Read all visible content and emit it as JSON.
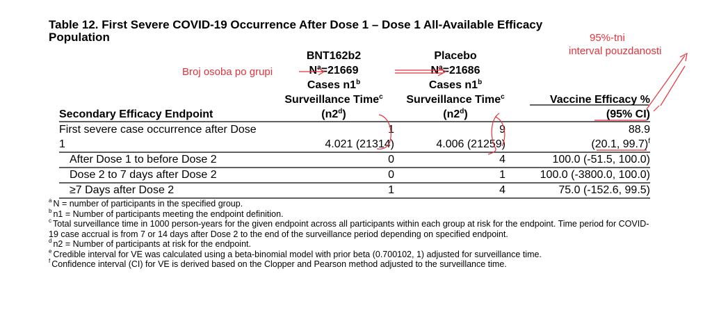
{
  "title": "Table 12. First Severe COVID-19 Occurrence After Dose 1 – Dose 1 All-Available Efficacy Population",
  "header": {
    "endpoint": "Secondary Efficacy Endpoint",
    "groups": [
      {
        "lines": [
          {
            "text": "BNT162b2"
          },
          {
            "text": "N",
            "sup": "a",
            "after": "=21669"
          },
          {
            "text": "Cases n1",
            "sup": "b"
          },
          {
            "text": "Surveillance Time",
            "sup": "c"
          },
          {
            "text": "(n2",
            "sup": "d",
            "after": ")"
          }
        ]
      },
      {
        "lines": [
          {
            "text": "Placebo"
          },
          {
            "text": "N",
            "sup": "a",
            "after": "=21686"
          },
          {
            "text": "Cases n1",
            "sup": "b"
          },
          {
            "text": "Surveillance Time",
            "sup": "c"
          },
          {
            "text": "(n2",
            "sup": "d",
            "after": ")"
          }
        ]
      }
    ],
    "efficacy": [
      {
        "text": "Vaccine Efficacy %"
      },
      {
        "text": "(95% CI)"
      }
    ]
  },
  "table": {
    "rows": [
      {
        "endpoint": "First severe case occurrence after Dose 1",
        "bnt": [
          "1",
          "4.021 (21314)"
        ],
        "placebo": [
          "9",
          "4.006 (21259)"
        ],
        "ve": [
          {
            "text": "88.9"
          },
          {
            "text": "(20.1, 99.7)",
            "sup": "f"
          }
        ]
      },
      {
        "endpoint": "After Dose 1 to before Dose 2",
        "bnt": [
          "0"
        ],
        "placebo": [
          "4"
        ],
        "ve": [
          {
            "text": "100.0 (-51.5, 100.0)"
          }
        ]
      },
      {
        "endpoint": "Dose 2 to 7 days after Dose 2",
        "bnt": [
          "0"
        ],
        "placebo": [
          "1"
        ],
        "ve": [
          {
            "text": "100.0 (-3800.0, 100.0)"
          }
        ]
      },
      {
        "endpoint": "≥7 Days after Dose 2",
        "bnt": [
          "1"
        ],
        "placebo": [
          "4"
        ],
        "ve": [
          {
            "text": "75.0 (-152.6, 99.5)"
          }
        ]
      }
    ]
  },
  "footnotes": [
    {
      "mark": "a",
      "text": "N = number of participants in the specified group."
    },
    {
      "mark": "b",
      "text": "n1 = Number of participants meeting the endpoint definition."
    },
    {
      "mark": "c",
      "text": "Total surveillance time in 1000 person-years for the given endpoint across all participants within each group at risk for the endpoint. Time period for COVID-19 case accrual is from 7 or 14 days after Dose 2 to the end of the surveillance period depending on specified endpoint."
    },
    {
      "mark": "d",
      "text": "n2 = Number of participants at risk for the endpoint."
    },
    {
      "mark": "e",
      "text": "Credible interval for VE was calculated using a beta-binomial model with prior beta (0.700102, 1) adjusted for surveillance time."
    },
    {
      "mark": "f",
      "text": "Confidence interval (CI) for VE is derived based on the Clopper and Pearson method adjusted to the surveillance time."
    }
  ],
  "annotations": {
    "group_size": "Broj osoba po grupi",
    "ci": [
      "95%-tni",
      "interval pouzdanosti"
    ]
  }
}
